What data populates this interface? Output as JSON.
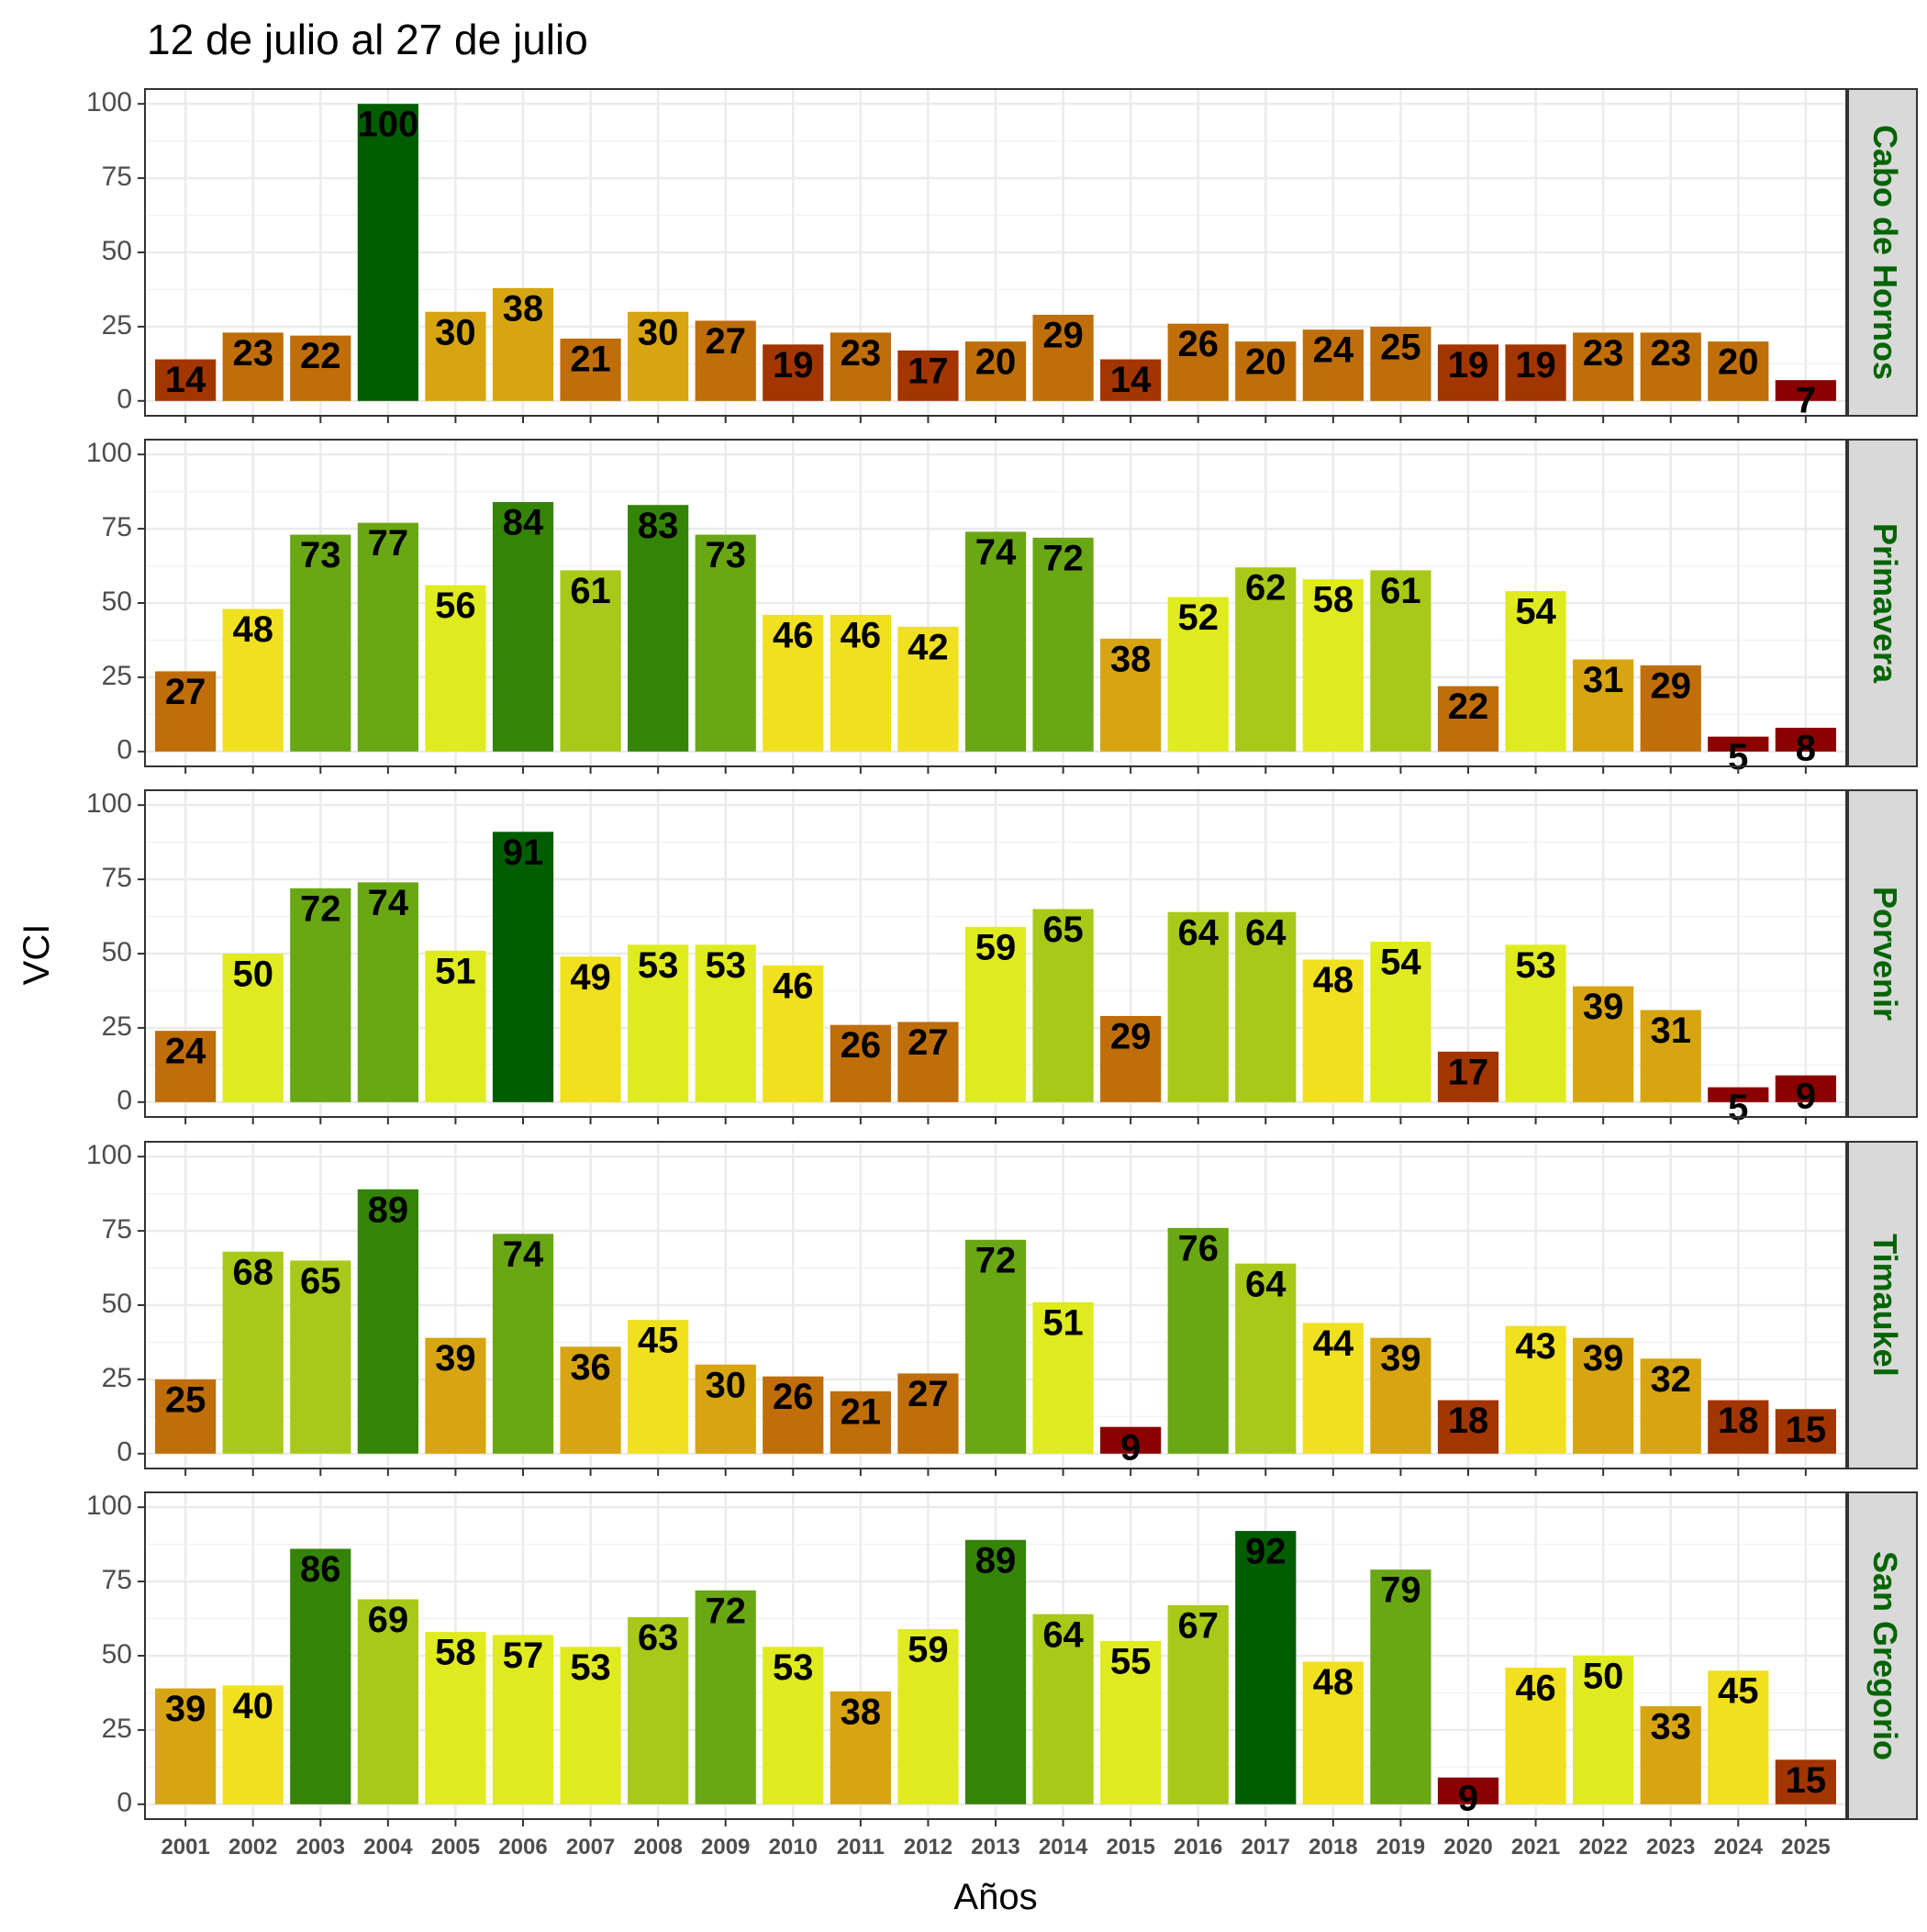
{
  "chart_data": {
    "type": "bar",
    "title": "12 de julio al 27 de julio",
    "xlabel": "Años",
    "ylabel": "VCI",
    "ylim": [
      0,
      100
    ],
    "yticks": [
      0,
      25,
      50,
      75,
      100
    ],
    "grid": true,
    "categories": [
      "2001",
      "2002",
      "2003",
      "2004",
      "2005",
      "2006",
      "2007",
      "2008",
      "2009",
      "2010",
      "2011",
      "2012",
      "2013",
      "2014",
      "2015",
      "2016",
      "2017",
      "2018",
      "2019",
      "2020",
      "2021",
      "2022",
      "2023",
      "2024",
      "2025"
    ],
    "panels": [
      {
        "name": "Cabo de Hornos",
        "values": [
          14,
          23,
          22,
          100,
          30,
          38,
          21,
          30,
          27,
          19,
          23,
          17,
          20,
          29,
          14,
          26,
          20,
          24,
          25,
          19,
          19,
          23,
          23,
          20,
          7
        ]
      },
      {
        "name": "Primavera",
        "values": [
          27,
          48,
          73,
          77,
          56,
          84,
          61,
          83,
          73,
          46,
          46,
          42,
          74,
          72,
          38,
          52,
          62,
          58,
          61,
          22,
          54,
          31,
          29,
          5,
          8
        ]
      },
      {
        "name": "Porvenir",
        "values": [
          24,
          50,
          72,
          74,
          51,
          91,
          49,
          53,
          53,
          46,
          26,
          27,
          59,
          65,
          29,
          64,
          64,
          48,
          54,
          17,
          53,
          39,
          31,
          5,
          9
        ]
      },
      {
        "name": "Timaukel",
        "values": [
          25,
          68,
          65,
          89,
          39,
          74,
          36,
          45,
          30,
          26,
          21,
          27,
          72,
          51,
          9,
          76,
          64,
          44,
          39,
          18,
          43,
          39,
          32,
          18,
          15
        ]
      },
      {
        "name": "San Gregorio",
        "values": [
          39,
          40,
          86,
          69,
          58,
          57,
          53,
          63,
          72,
          53,
          38,
          59,
          89,
          64,
          55,
          67,
          92,
          48,
          79,
          9,
          46,
          50,
          33,
          45,
          15
        ]
      }
    ],
    "color_scale": [
      {
        "min": 0,
        "max": 10,
        "color": "#8B0000"
      },
      {
        "min": 10,
        "max": 20,
        "color": "#A33500"
      },
      {
        "min": 20,
        "max": 30,
        "color": "#BF6E09"
      },
      {
        "min": 30,
        "max": 40,
        "color": "#D6A511"
      },
      {
        "min": 40,
        "max": 50,
        "color": "#F0E01E"
      },
      {
        "min": 50,
        "max": 60,
        "color": "#DFEB1E"
      },
      {
        "min": 60,
        "max": 70,
        "color": "#A8C918"
      },
      {
        "min": 70,
        "max": 80,
        "color": "#6AA714"
      },
      {
        "min": 80,
        "max": 90,
        "color": "#348408"
      },
      {
        "min": 90,
        "max": 101,
        "color": "#005E00"
      }
    ],
    "strip_text_color": "#006400",
    "strip_fill_color": "#D9D9D9"
  }
}
